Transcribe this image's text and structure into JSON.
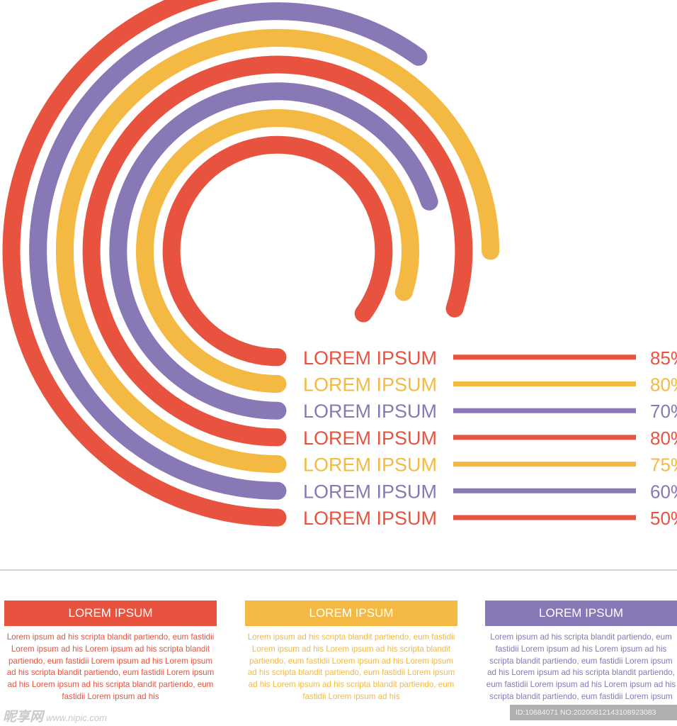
{
  "chart_data": {
    "type": "radial-bar",
    "categories": [
      "LOREM IPSUM",
      "LOREM IPSUM",
      "LOREM IPSUM",
      "LOREM IPSUM",
      "LOREM IPSUM",
      "LOREM IPSUM",
      "LOREM IPSUM"
    ],
    "values": [
      85,
      80,
      70,
      80,
      75,
      60,
      50
    ],
    "value_labels": [
      "85%",
      "80%",
      "70%",
      "80%",
      "75%",
      "60%",
      "50%"
    ],
    "colors": [
      "#e8533f",
      "#f4b942",
      "#8878b6",
      "#e8533f",
      "#f4b942",
      "#8878b6",
      "#e8533f"
    ],
    "unit": "%"
  },
  "cards": [
    {
      "title": "LOREM IPSUM",
      "color": "#e8533f",
      "text": "Lorem ipsum ad his scripta blandit partiendo, eum fastidii Lorem ipsum ad his Lorem ipsum ad his scripta blandit partiendo, eum fastidii Lorem ipsum ad his Lorem ipsum ad his scripta blandit partiendo, eum fastidii Lorem ipsum ad his Lorem ipsum ad his scripta blandit partiendo, eum fastidii Lorem ipsum ad his"
    },
    {
      "title": "LOREM IPSUM",
      "color": "#f4b942",
      "text": "Lorem ipsum ad his scripta blandit partiendo, eum fastidii Lorem ipsum ad his Lorem ipsum ad his scripta blandit partiendo, eum fastidii Lorem ipsum ad his Lorem ipsum ad his scripta blandit partiendo, eum fastidii Lorem ipsum ad his Lorem ipsum ad his scripta blandit partiendo, eum fastidii Lorem ipsum ad his"
    },
    {
      "title": "LOREM IPSUM",
      "color": "#8878b6",
      "text": "Lorem ipsum ad his scripta blandit partiendo, eum fastidii Lorem ipsum ad his Lorem ipsum ad his scripta blandit partiendo, eum fastidii Lorem ipsum ad his Lorem ipsum ad his scripta blandit partiendo, eum fastidii Lorem ipsum ad his Lorem ipsum ad his scripta blandit partiendo, eum fastidii Lorem ipsum ad his"
    }
  ],
  "watermark": {
    "site_name": "昵享网",
    "site_url": "www.nipic.com",
    "image_id": "ID:10684071 NO:20200812143108923083"
  }
}
